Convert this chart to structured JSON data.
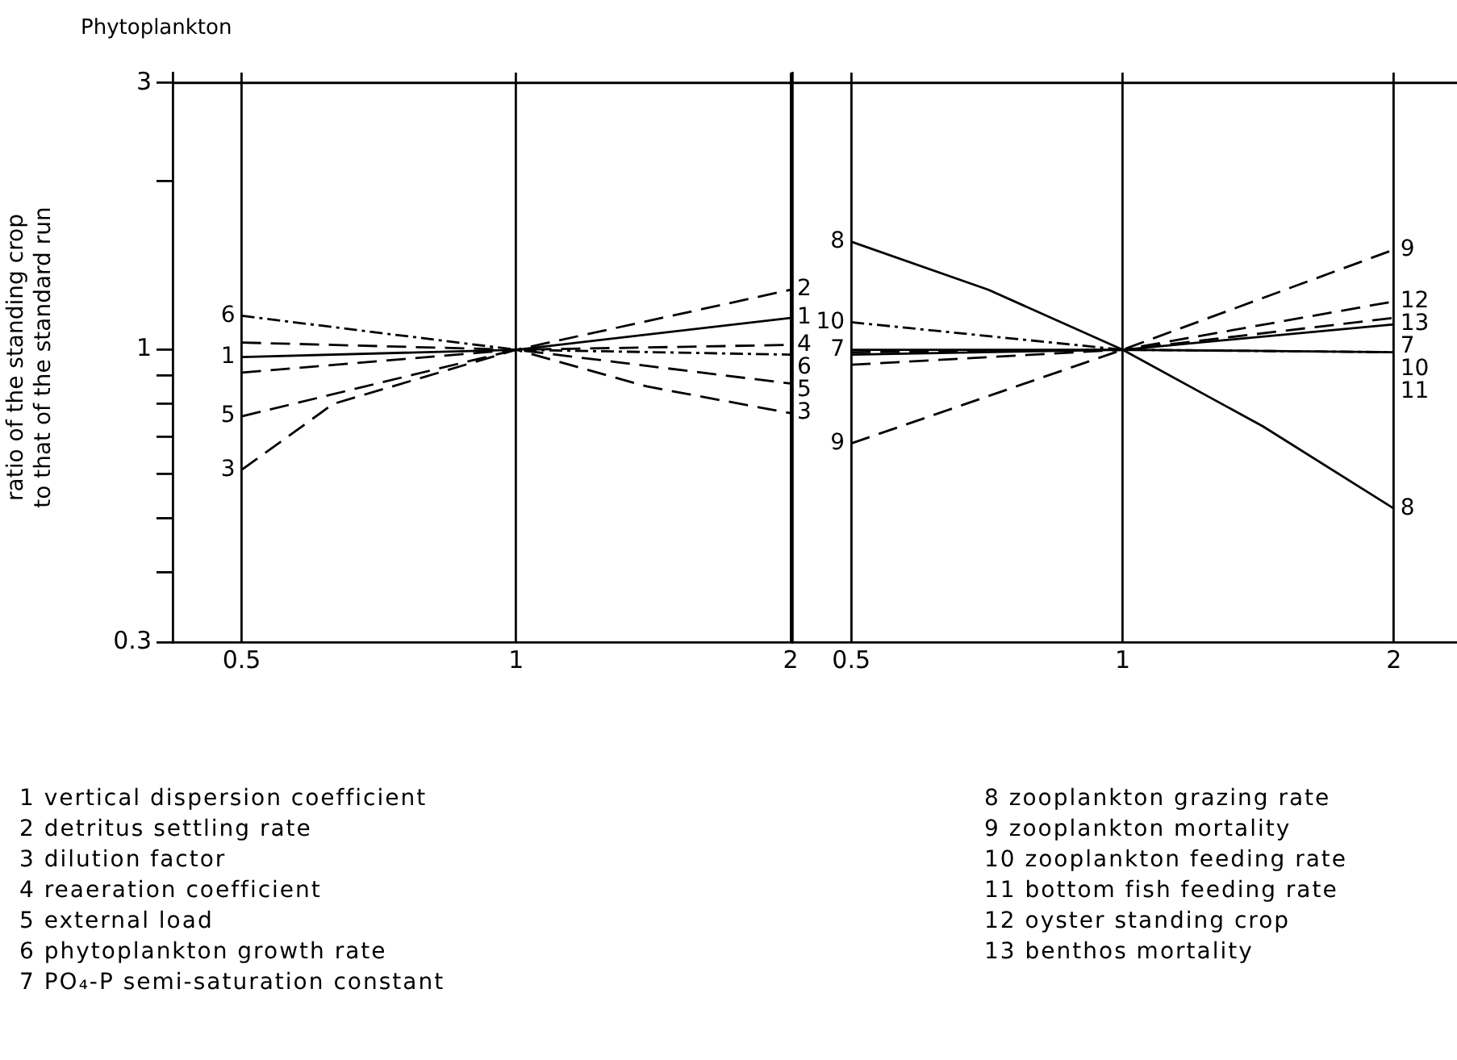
{
  "chart_data": [
    {
      "type": "line",
      "title": "Phytoplankton",
      "ylabel": "ratio of the standing crop\nto that of the standard run",
      "x": [
        0.5,
        1,
        2
      ],
      "log": "xy",
      "xlim": [
        0.42,
        2
      ],
      "xticks": [
        0.5,
        1,
        2
      ],
      "ylim": [
        0.3,
        3.13
      ],
      "yticks": [
        0.3,
        {
          "value": 0.4,
          "label": null
        },
        {
          "value": 0.5,
          "label": null
        },
        {
          "value": 0.6,
          "label": null
        },
        {
          "value": 0.7,
          "label": null
        },
        {
          "value": 0.8,
          "label": null
        },
        {
          "value": 0.9,
          "label": null
        },
        1,
        {
          "value": 2,
          "label": null
        },
        3
      ],
      "grid": "x",
      "legend": false,
      "ref_lines": [
        {
          "axis": "y",
          "value": 3
        }
      ],
      "series": [
        {
          "name": "1",
          "color": "#000000",
          "line_style": "solid",
          "values": [
            0.97,
            1,
            1.14
          ]
        },
        {
          "name": "2",
          "color": "#000000",
          "line_style": "dashed",
          "values": [
            0.91,
            1,
            1.28
          ]
        },
        {
          "name": "3",
          "color": "#000000",
          "line_style": "dashed",
          "x": [
            0.5,
            0.63,
            1,
            1.39,
            2
          ],
          "values": [
            0.61,
            0.8,
            1,
            0.86,
            0.77
          ]
        },
        {
          "name": "4",
          "color": "#000000",
          "line_style": "dashed",
          "values": [
            1.03,
            1,
            1.02
          ]
        },
        {
          "name": "5",
          "color": "#000000",
          "line_style": "dashed",
          "values": [
            0.76,
            1,
            0.87
          ]
        },
        {
          "name": "6",
          "color": "#000000",
          "line_style": "dotted",
          "values": [
            1.15,
            1,
            0.98
          ]
        }
      ],
      "annotations": [
        "1 vertical dispersion coefficient",
        "2 detritus settling rate",
        "3 dilution factor",
        "4 reaeration coefficient",
        "5 external load",
        "6 phytoplankton growth rate",
        "7 PO₄-P semi-saturation constant"
      ]
    },
    {
      "type": "line",
      "x": [
        0.5,
        1,
        2
      ],
      "log": "xy",
      "xlim": [
        0.43,
        2.35
      ],
      "xticks": [
        0.5,
        1,
        2
      ],
      "ylim": [
        0.3,
        3.13
      ],
      "tick_labels": "x",
      "grid": "x",
      "legend": false,
      "ref_lines": [
        {
          "axis": "y",
          "value": 3
        }
      ],
      "series": [
        {
          "name": "7",
          "color": "#000000",
          "line_style": "solid",
          "values": [
            1.0,
            1,
            1.11
          ]
        },
        {
          "name": "8",
          "color": "#000000",
          "line_style": "solid",
          "x": [
            0.5,
            0.71,
            1,
            1.43,
            2
          ],
          "values": [
            1.56,
            1.28,
            1,
            0.73,
            0.52
          ]
        },
        {
          "name": "9",
          "color": "#000000",
          "line_style": "dashed",
          "values": [
            0.68,
            1,
            1.51
          ]
        },
        {
          "name": "10",
          "color": "#000000",
          "line_style": "dotted",
          "values": [
            1.12,
            1,
            0.99
          ]
        },
        {
          "name": "11",
          "color": "#000000",
          "line_style": "solid",
          "values": [
            0.98,
            1,
            0.99
          ]
        },
        {
          "name": "12",
          "color": "#000000",
          "line_style": "dashed",
          "values": [
            0.94,
            1,
            1.22
          ]
        },
        {
          "name": "13",
          "color": "#000000",
          "line_style": "dashed",
          "values": [
            0.99,
            1,
            1.14
          ]
        }
      ],
      "annotations": [
        "8 zooplankton grazing rate",
        "9 zooplankton mortality",
        "10 zooplankton feeding rate",
        "11 bottom fish feeding rate",
        "12 oyster standing crop",
        "13 benthos mortality"
      ]
    }
  ]
}
